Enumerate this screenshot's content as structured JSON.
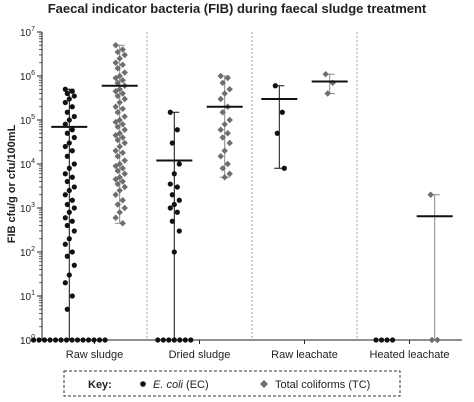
{
  "chart_data": {
    "type": "scatter",
    "title": "Faecal indicator bacteria (FIB) during faecal sludge treatment",
    "ylabel": "FIB cfu/g or cfu/100mL",
    "xlabel": "",
    "yscale": "log",
    "ylim": [
      1,
      10000000
    ],
    "y_ticks": [
      {
        "base": "10",
        "exp": "0",
        "value": 1
      },
      {
        "base": "10",
        "exp": "1",
        "value": 10
      },
      {
        "base": "10",
        "exp": "2",
        "value": 100
      },
      {
        "base": "10",
        "exp": "3",
        "value": 1000
      },
      {
        "base": "10",
        "exp": "4",
        "value": 10000
      },
      {
        "base": "10",
        "exp": "5",
        "value": 100000
      },
      {
        "base": "10",
        "exp": "6",
        "value": 1000000
      },
      {
        "base": "10",
        "exp": "7",
        "value": 10000000
      }
    ],
    "categories": [
      "Raw sludge",
      "Dried sludge",
      "Raw leachate",
      "Heated leachate"
    ],
    "key": {
      "label": "Key:",
      "ec_name": "E. coli",
      "ec_suffix": "(EC)",
      "tc_label": "Total coliforms (TC)"
    },
    "series": [
      {
        "name": "E. coli (EC)",
        "marker": "circle",
        "color": "#111111",
        "groups": [
          {
            "category": "Raw sludge",
            "geomean": 70000,
            "range": [
              1,
              500000
            ],
            "values": [
              500000,
              450000,
              400000,
              350000,
              300000,
              250000,
              200000,
              150000,
              120000,
              100000,
              80000,
              60000,
              50000,
              40000,
              30000,
              25000,
              20000,
              15000,
              10000,
              8000,
              6000,
              5000,
              4000,
              3000,
              2500,
              2000,
              1500,
              1200,
              1000,
              800,
              600,
              500,
              400,
              300,
              200,
              150,
              100,
              80,
              50,
              30,
              20,
              10,
              5,
              1,
              1,
              1,
              1,
              1,
              1,
              1,
              1,
              1,
              1,
              1,
              1,
              1,
              1
            ]
          },
          {
            "category": "Dried sludge",
            "geomean": 12000,
            "range": [
              1,
              150000
            ],
            "values": [
              150000,
              60000,
              30000,
              10000,
              6000,
              3500,
              3000,
              2000,
              1500,
              1200,
              1000,
              800,
              500,
              300,
              100,
              1,
              1,
              1,
              1,
              1,
              1,
              1
            ]
          },
          {
            "category": "Raw leachate",
            "geomean": 300000,
            "range": [
              8000,
              600000
            ],
            "values": [
              600000,
              150000,
              50000,
              8000
            ]
          },
          {
            "category": "Heated leachate",
            "geomean": null,
            "range": null,
            "values": [
              1,
              1,
              1,
              1
            ]
          }
        ]
      },
      {
        "name": "Total coliforms (TC)",
        "marker": "diamond",
        "color": "#6e6e6e",
        "groups": [
          {
            "category": "Raw sludge",
            "geomean": 600000,
            "range": [
              450,
              5000000
            ],
            "values": [
              5000000,
              4000000,
              3500000,
              3000000,
              2500000,
              2000000,
              1800000,
              1500000,
              1200000,
              1000000,
              900000,
              800000,
              700000,
              600000,
              500000,
              450000,
              400000,
              350000,
              300000,
              250000,
              200000,
              180000,
              150000,
              120000,
              100000,
              90000,
              80000,
              70000,
              60000,
              50000,
              45000,
              40000,
              35000,
              30000,
              25000,
              20000,
              18000,
              15000,
              12000,
              10000,
              9000,
              8000,
              7000,
              6000,
              5000,
              4500,
              4000,
              3500,
              3000,
              2500,
              2000,
              1500,
              1200,
              1000,
              800,
              600,
              450
            ]
          },
          {
            "category": "Dried sludge",
            "geomean": 200000,
            "range": [
              5000,
              1000000
            ],
            "values": [
              1000000,
              900000,
              700000,
              500000,
              400000,
              300000,
              200000,
              150000,
              100000,
              80000,
              60000,
              50000,
              40000,
              30000,
              20000,
              15000,
              10000,
              8000,
              6000,
              5000
            ]
          },
          {
            "category": "Raw leachate",
            "geomean": 750000,
            "range": [
              400000,
              1100000
            ],
            "values": [
              1100000,
              700000,
              400000
            ]
          },
          {
            "category": "Heated leachate",
            "geomean": 650,
            "range": [
              1,
              2000
            ],
            "values": [
              2000,
              1,
              1
            ]
          }
        ]
      }
    ],
    "grid": false,
    "legend_position": "bottom"
  }
}
